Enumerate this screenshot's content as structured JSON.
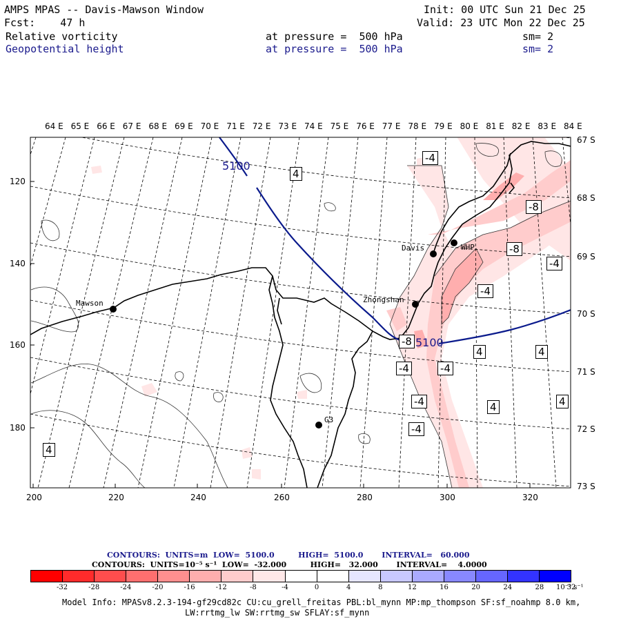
{
  "header": {
    "title": "AMPS MPAS -- Davis-Mawson Window",
    "fcst": "Fcst:    47 h",
    "init": "Init: 00 UTC Sun 21 Dec 25",
    "valid": "Valid: 23 UTC Mon 22 Dec 25",
    "field1": {
      "name": "Relative vorticity",
      "pressure": "at pressure =  500 hPa",
      "sm": "sm= 2"
    },
    "field2": {
      "name": "Geopotential height",
      "pressure": "at pressure =  500 hPa",
      "sm": "sm= 2"
    }
  },
  "map": {
    "top_lon_labels": [
      "64 E",
      "65 E",
      "66 E",
      "67 E",
      "68 E",
      "69 E",
      "70 E",
      "71 E",
      "72 E",
      "73 E",
      "74 E",
      "75 E",
      "76 E",
      "77 E",
      "78 E",
      "79 E",
      "80 E",
      "81 E",
      "82 E",
      "83 E",
      "84 E"
    ],
    "right_lat_labels": [
      "67 S",
      "68 S",
      "69 S",
      "70 S",
      "71 S",
      "72 S",
      "73 S"
    ],
    "left_y_labels": [
      "120",
      "140",
      "160",
      "180"
    ],
    "bottom_x_labels": [
      "200",
      "220",
      "240",
      "260",
      "280",
      "300",
      "320"
    ],
    "stations": [
      {
        "name": "Mawson"
      },
      {
        "name": "Davis"
      },
      {
        "name": "WHP"
      },
      {
        "name": "Zhongshan"
      },
      {
        "name": "G3"
      }
    ],
    "height_contour_label": "5100",
    "height_contour_label_2": "5100",
    "vort_labels": [
      "-4",
      "-8",
      "-8",
      "-4",
      "-4",
      "-8",
      "-4",
      "-4",
      "-4",
      "-4",
      "4",
      "4",
      "4",
      "4",
      "4",
      "4"
    ]
  },
  "contours_info": {
    "line1": "CONTOURS:  UNITS=m  LOW=  5100.0         HIGH=  5100.0       INTERVAL=   60.000",
    "line2": "CONTOURS:  UNITS=10⁻⁵ s⁻¹  LOW=  -32.000         HIGH=   32.000       INTERVAL=    4.0000"
  },
  "colorbar": {
    "colors": [
      "#ff0000",
      "#ff2b2b",
      "#ff4d4d",
      "#ff6f6f",
      "#ff8f8f",
      "#ffaeae",
      "#ffcccc",
      "#ffe8e8",
      "#ffffff",
      "#ffffff",
      "#e6e6ff",
      "#c8c8ff",
      "#aaaaff",
      "#8888ff",
      "#6666ff",
      "#3333ff",
      "#0000ff"
    ],
    "ticks": [
      "-32",
      "-28",
      "-24",
      "-20",
      "-16",
      "-12",
      "-8",
      "-4",
      "0",
      "4",
      "8",
      "12",
      "16",
      "20",
      "24",
      "28",
      "32"
    ],
    "unit": "10⁻⁵ s⁻¹"
  },
  "footer": {
    "line1": "Model Info: MPASv8.2.3-194-gf29cd82c CU:cu_grell_freitas PBL:bl_mynn MP:mp_thompson SF:sf_noahmp 8.0 km,",
    "line2": "LW:rrtmg_lw SW:rrtmg_sw SFLAY:sf_mynn"
  },
  "colors": {
    "height_contour": "#0a1a8c",
    "blue_text": "#1a1a8c"
  }
}
